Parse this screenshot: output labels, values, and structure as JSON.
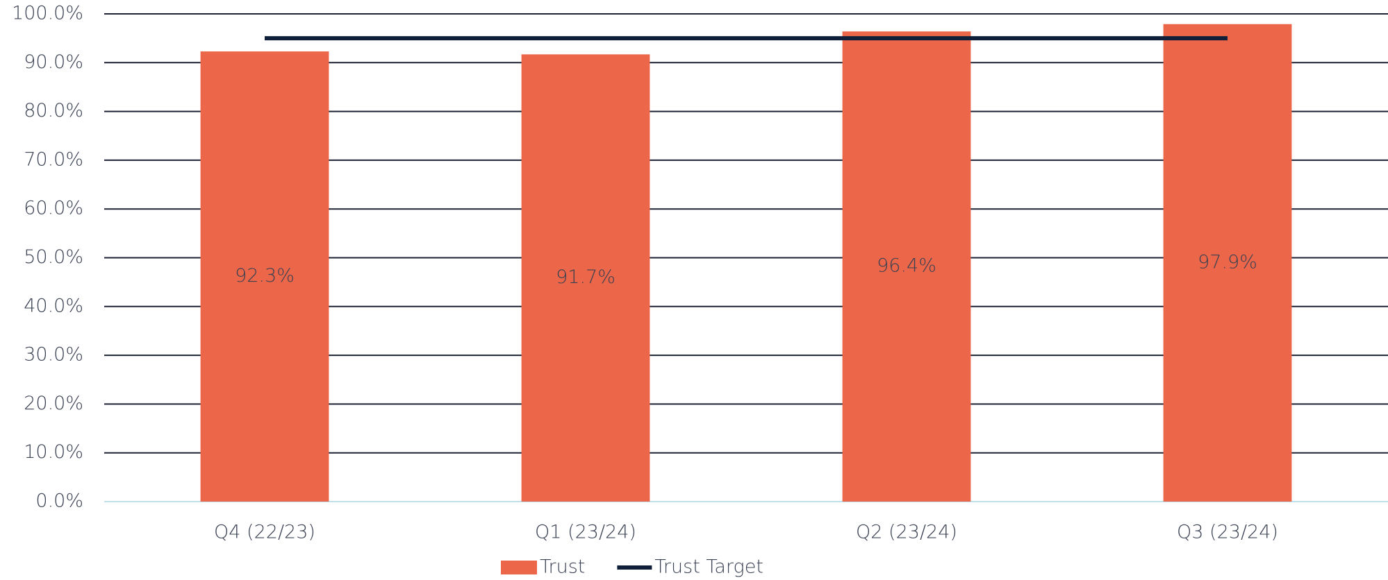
{
  "chart_data": {
    "type": "bar",
    "categories": [
      "Q4 (22/23)",
      "Q1 (23/24)",
      "Q2 (23/24)",
      "Q3 (23/24)"
    ],
    "series": [
      {
        "name": "Trust",
        "type": "bar",
        "color": "#ec6649",
        "values": [
          92.3,
          91.7,
          96.4,
          97.9
        ],
        "value_labels": [
          "92.3%",
          "91.7%",
          "96.4%",
          "97.9%"
        ]
      },
      {
        "name": "Trust Target",
        "type": "line",
        "color": "#0f1f3a",
        "values": [
          95,
          95,
          95,
          95
        ]
      }
    ],
    "ylim": [
      0,
      100
    ],
    "yticks": [
      {
        "value": 0,
        "label": "0.0%"
      },
      {
        "value": 10,
        "label": "10.0%"
      },
      {
        "value": 20,
        "label": "20.0%"
      },
      {
        "value": 30,
        "label": "30.0%"
      },
      {
        "value": 40,
        "label": "40.0%"
      },
      {
        "value": 50,
        "label": "50.0%"
      },
      {
        "value": 60,
        "label": "60.0%"
      },
      {
        "value": 70,
        "label": "70.0%"
      },
      {
        "value": 80,
        "label": "80.0%"
      },
      {
        "value": 90,
        "label": "90.0%"
      },
      {
        "value": 100,
        "label": "100.0%"
      }
    ],
    "grid": true,
    "legend": "bottom"
  }
}
